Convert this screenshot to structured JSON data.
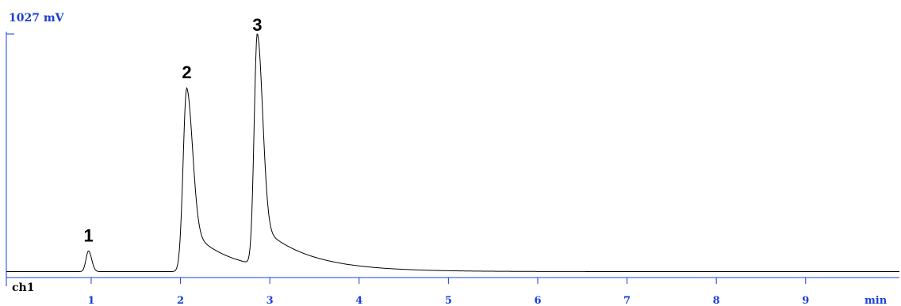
{
  "chart_data": {
    "type": "line",
    "y_max_label": "1027 mV",
    "channel": "ch1",
    "x_unit": "min",
    "xlim": [
      0.05,
      10.05
    ],
    "ylim": [
      0,
      1027
    ],
    "x_ticks": [
      "1",
      "2",
      "3",
      "4",
      "5",
      "6",
      "7",
      "8",
      "9"
    ],
    "baseline_mV": 25,
    "peaks": [
      {
        "label": "1",
        "time": 0.97,
        "height_mV": 112
      },
      {
        "label": "2",
        "time": 2.07,
        "height_mV": 800
      },
      {
        "label": "3",
        "time": 2.86,
        "height_mV": 1000
      }
    ],
    "colors": {
      "axis": "#1a3fd6",
      "trace": "#000000"
    }
  }
}
